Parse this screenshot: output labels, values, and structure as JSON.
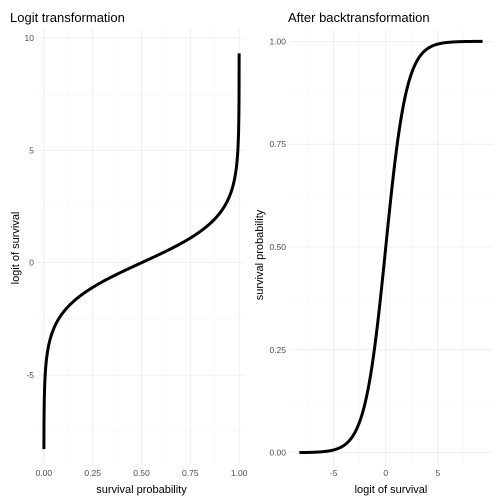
{
  "chart_data": [
    {
      "type": "line",
      "title": "Logit transformation",
      "xlabel": "survival probability",
      "ylabel": "logit of survival",
      "xlim": [
        -0.03,
        1.03
      ],
      "ylim": [
        -9.0,
        10.4
      ],
      "xticks": [
        0.0,
        0.25,
        0.5,
        0.75,
        1.0
      ],
      "xtick_labels": [
        "0.00",
        "0.25",
        "0.50",
        "0.75",
        "1.00"
      ],
      "yticks": [
        -5,
        0,
        5,
        10
      ],
      "ytick_labels": [
        "-5",
        "0",
        "5",
        "10"
      ],
      "grid": true,
      "legend": "none",
      "curve": "logit",
      "domain": [
        0.00025,
        0.99991
      ],
      "line_color": "#000000"
    },
    {
      "type": "line",
      "title": "After backtransformation",
      "xlabel": "logit of survival",
      "ylabel": "survival probability",
      "xlim": [
        -9.2,
        10.3
      ],
      "ylim": [
        -0.03,
        1.03
      ],
      "xticks": [
        -5,
        0,
        5
      ],
      "xtick_labels": [
        "-5",
        "0",
        "5"
      ],
      "yticks": [
        0.0,
        0.25,
        0.5,
        0.75,
        1.0
      ],
      "ytick_labels": [
        "0.00",
        "0.25",
        "0.50",
        "0.75",
        "1.00"
      ],
      "grid": true,
      "legend": "none",
      "curve": "inverse-logit",
      "domain": [
        -8.3,
        9.3
      ],
      "line_color": "#000000"
    }
  ]
}
